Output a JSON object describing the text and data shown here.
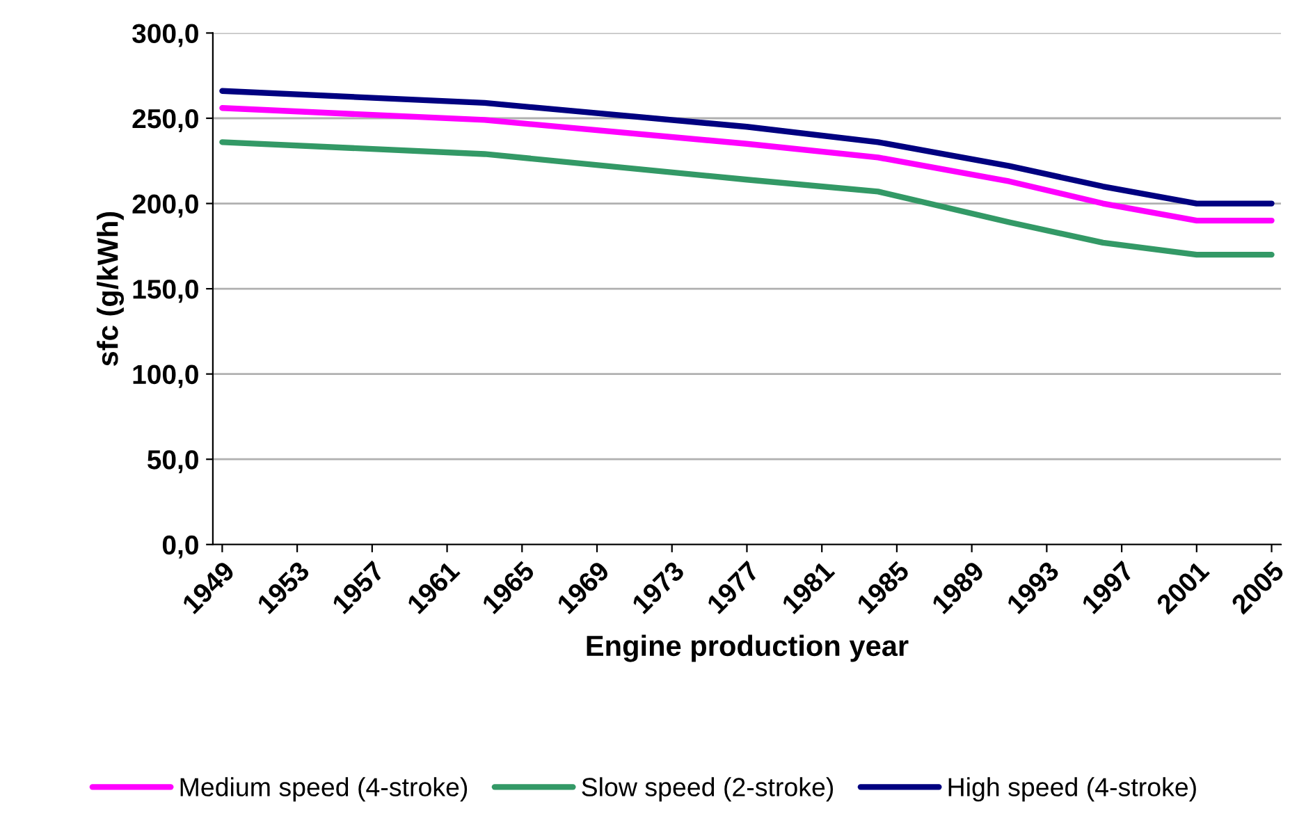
{
  "chart_data": {
    "type": "line",
    "xlabel": "Engine production year",
    "ylabel": "sfc (g/kWh)",
    "x": [
      1949,
      1963,
      1977,
      1984,
      1991,
      1996,
      2001,
      2005
    ],
    "series": [
      {
        "name": "Medium speed (4-stroke)",
        "color": "#ff00ff",
        "values": [
          256,
          249,
          235,
          227,
          213,
          200,
          190,
          190
        ]
      },
      {
        "name": "Slow speed (2-stroke)",
        "color": "#339966",
        "values": [
          236,
          229,
          214,
          207,
          189,
          177,
          170,
          170
        ]
      },
      {
        "name": "High speed (4-stroke)",
        "color": "#000080",
        "values": [
          266,
          259,
          245,
          236,
          222,
          210,
          200,
          200
        ]
      }
    ],
    "xlim": [
      1948.5,
      2005.5
    ],
    "xticks": [
      1949,
      1953,
      1957,
      1961,
      1965,
      1969,
      1973,
      1977,
      1981,
      1985,
      1989,
      1993,
      1997,
      2001,
      2005
    ],
    "ylim": [
      0,
      300
    ],
    "yticks": [
      {
        "value": 0,
        "label": "0,0"
      },
      {
        "value": 50,
        "label": "50,0"
      },
      {
        "value": 100,
        "label": "100,0"
      },
      {
        "value": 150,
        "label": "150,0"
      },
      {
        "value": 200,
        "label": "200,0"
      },
      {
        "value": 250,
        "label": "250,0"
      },
      {
        "value": 300,
        "label": "300,0"
      }
    ],
    "grid": "y",
    "legend": "bottom",
    "marker": "none",
    "line_style": "solid"
  }
}
